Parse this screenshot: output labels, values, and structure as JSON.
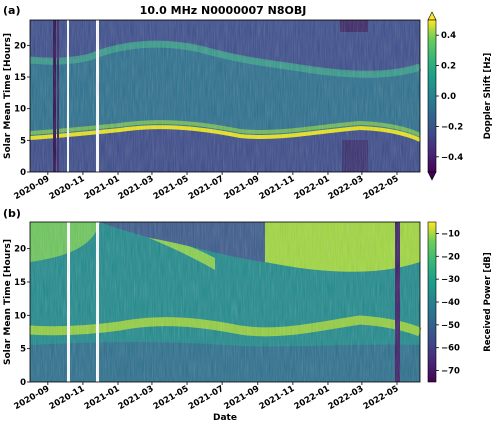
{
  "chart_data": [
    {
      "panel_label": "(a)",
      "type": "heatmap",
      "title": "10.0 MHz N0000007 N8OBJ",
      "xlabel": "",
      "ylabel": "Solar Mean Time [Hours]",
      "x_ticks": [
        "2020-09",
        "2020-11",
        "2021-01",
        "2021-03",
        "2021-05",
        "2021-07",
        "2021-09",
        "2021-11",
        "2022-01",
        "2022-03",
        "2022-05"
      ],
      "y_ticks": [
        0,
        5,
        10,
        15,
        20
      ],
      "ylim": [
        0,
        24
      ],
      "xlim": [
        "2020-08-01",
        "2022-06-10"
      ],
      "colorbar": {
        "label": "Doppler Shift [Hz]",
        "ticks": [
          0.4,
          0.2,
          0.0,
          -0.2,
          -0.4
        ],
        "tick_labels": [
          "0.4",
          "0.2",
          "0.0",
          "−0.2",
          "−0.4"
        ],
        "range": [
          -0.5,
          0.5
        ],
        "colormap": "viridis",
        "extend": "both"
      },
      "data_gaps": [
        "2020-10-10",
        "2020-11-28"
      ],
      "dark_stripes": [
        "2020-10-01",
        "2020-10-04"
      ],
      "features": {
        "sunrise_band_hours": [
          [
            6.8,
            4.2
          ]
        ],
        "sunset_band_hours": [
          [
            17.2,
            19.8
          ]
        ],
        "sunrise_band_color": "bright yellow",
        "night_color": "dark blue-purple",
        "day_color": "green"
      }
    },
    {
      "panel_label": "(b)",
      "type": "heatmap",
      "title": "",
      "xlabel": "Date",
      "ylabel": "Solar Mean Time [Hours]",
      "x_ticks": [
        "2020-09",
        "2020-11",
        "2021-01",
        "2021-03",
        "2021-05",
        "2021-07",
        "2021-09",
        "2021-11",
        "2022-01",
        "2022-03",
        "2022-05"
      ],
      "y_ticks": [
        0,
        5,
        10,
        15,
        20
      ],
      "ylim": [
        0,
        24
      ],
      "xlim": [
        "2020-08-01",
        "2022-06-10"
      ],
      "colorbar": {
        "label": "Received Power [dB]",
        "ticks": [
          -10,
          -20,
          -30,
          -40,
          -50,
          -60,
          -70
        ],
        "tick_labels": [
          "−10",
          "−20",
          "−30",
          "−40",
          "−50",
          "−60",
          "−70"
        ],
        "range": [
          -75,
          -5
        ],
        "colormap": "viridis",
        "extend": "neither"
      },
      "data_gaps": [
        "2020-10-12",
        "2020-11-28"
      ],
      "dark_stripes": [
        "2022-04-15"
      ],
      "features": {
        "night_color": "bright yellow-green",
        "day_color": "teal-green",
        "low_power_color": "dark purple"
      }
    }
  ]
}
